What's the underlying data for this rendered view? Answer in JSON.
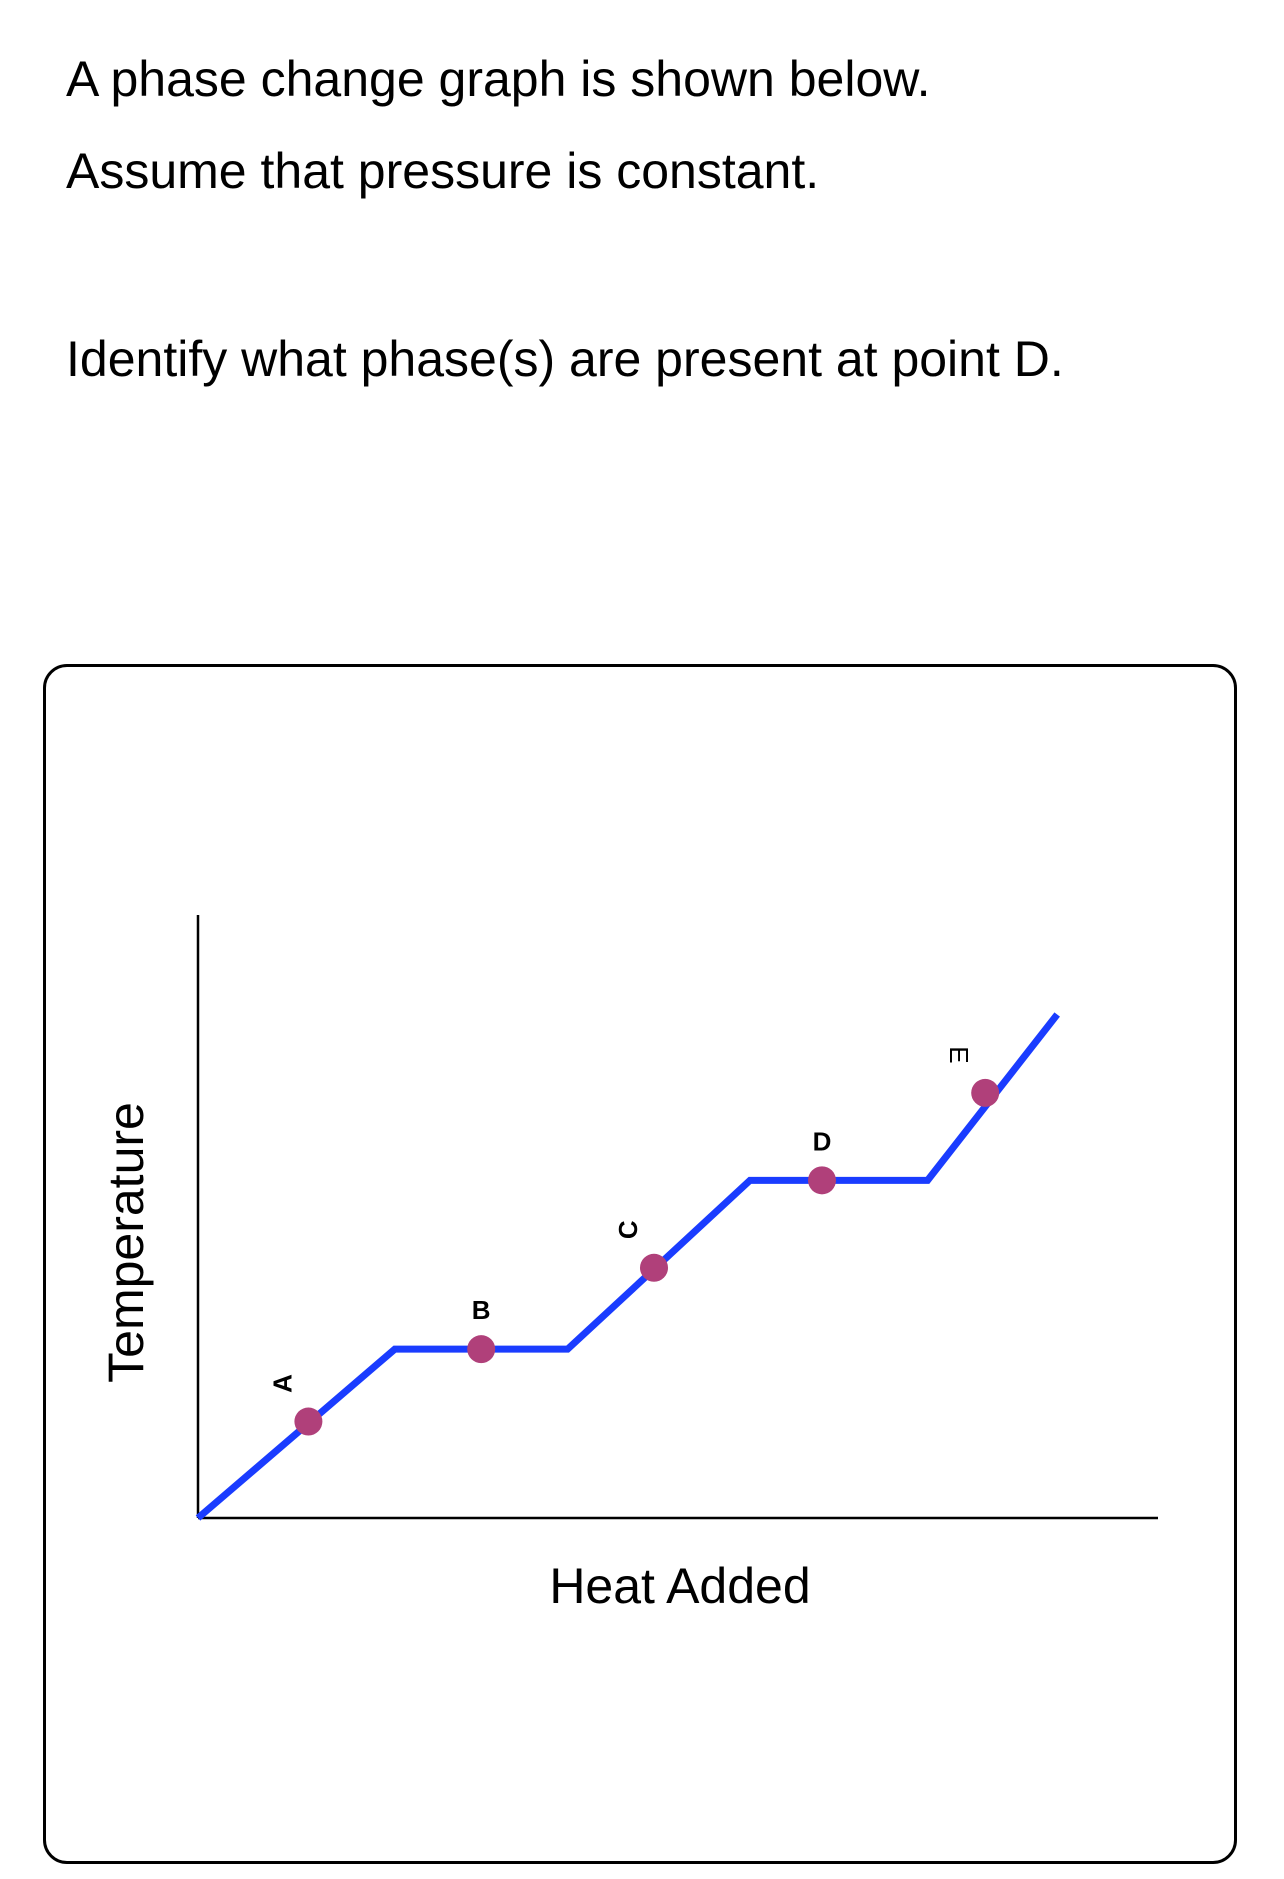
{
  "question": {
    "line1": "A phase change graph is shown below.",
    "line2": "Assume that pressure is constant.",
    "prompt": "Identify what phase(s) are present at point D."
  },
  "colors": {
    "curve": "#1a3cff",
    "point": "#b0407a",
    "axis": "#000000"
  },
  "chart_data": {
    "type": "line",
    "title": "",
    "xlabel": "Heat Added",
    "ylabel": "Temperature",
    "grid": false,
    "legend": "none",
    "xlim": [
      0,
      100
    ],
    "ylim": [
      0,
      100
    ],
    "series": [
      {
        "x": [
          0,
          20.5,
          38.5,
          57.5,
          76,
          89.5
        ],
        "y": [
          0,
          28,
          28,
          56,
          56,
          83.5
        ]
      }
    ],
    "points": [
      {
        "label": "A",
        "x": 11.5,
        "y": 16,
        "label_style": "bold",
        "label_rotation": -90
      },
      {
        "label": "B",
        "x": 29.5,
        "y": 28,
        "label_style": "bold",
        "label_rotation": 0
      },
      {
        "label": "C",
        "x": 47.5,
        "y": 41.5,
        "label_style": "bold",
        "label_rotation": -90
      },
      {
        "label": "D",
        "x": 65,
        "y": 56,
        "label_style": "bold",
        "label_rotation": 0
      },
      {
        "label": "E",
        "x": 82,
        "y": 70.5,
        "label_style": "normal",
        "label_rotation": 90
      }
    ]
  }
}
